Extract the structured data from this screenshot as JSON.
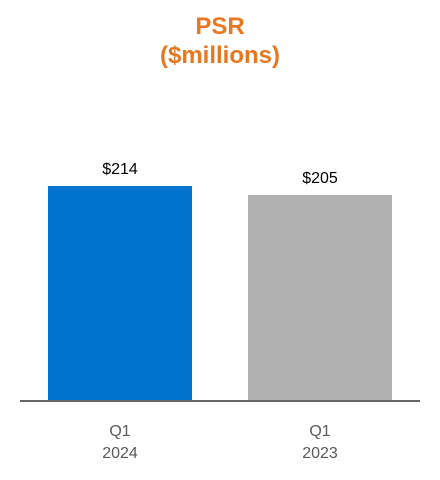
{
  "chart_data": {
    "type": "bar",
    "title": "PSR",
    "subtitle": "($millions)",
    "categories": [
      [
        "Q1",
        "2024"
      ],
      [
        "Q1",
        "2023"
      ]
    ],
    "values": [
      214,
      205
    ],
    "data_labels": [
      "$214",
      "$205"
    ],
    "colors": [
      "#0073CF",
      "#B0B0B0"
    ],
    "title_color": "#E87722",
    "axis_color": "#666666",
    "ylim": [
      0,
      400
    ],
    "grid": false,
    "legend": "none"
  }
}
